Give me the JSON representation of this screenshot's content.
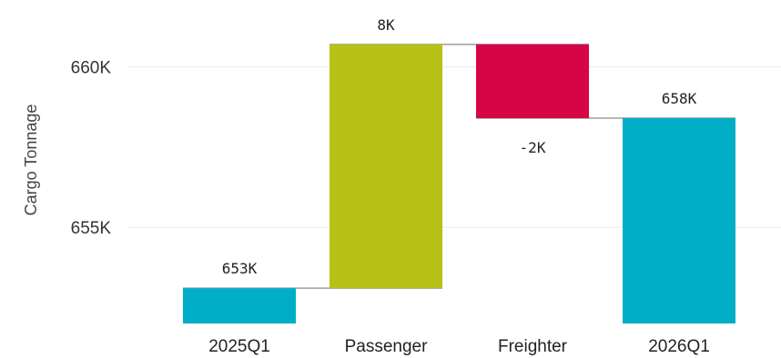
{
  "chart_data": {
    "type": "bar",
    "subtype": "waterfall",
    "title": "",
    "xlabel": "",
    "ylabel": "Cargo Tonnage",
    "ylim": [
      652000,
      661800
    ],
    "yticks": [
      655000,
      660000
    ],
    "ytick_labels": [
      "655K",
      "660K"
    ],
    "grid": true,
    "categories": [
      "2025Q1",
      "Passenger",
      "Freighter",
      "2026Q1"
    ],
    "steps": [
      {
        "kind": "total",
        "start": 652000,
        "end": 653100,
        "label": "653K",
        "color": "#00aec7"
      },
      {
        "kind": "increase",
        "start": 653100,
        "end": 660700,
        "label": "8K",
        "color": "#b8c115"
      },
      {
        "kind": "decrease",
        "start": 660700,
        "end": 658400,
        "label": "-2K",
        "color": "#d50546"
      },
      {
        "kind": "total",
        "start": 652000,
        "end": 658400,
        "label": "658K",
        "color": "#00aec7"
      }
    ],
    "connectors": true
  }
}
